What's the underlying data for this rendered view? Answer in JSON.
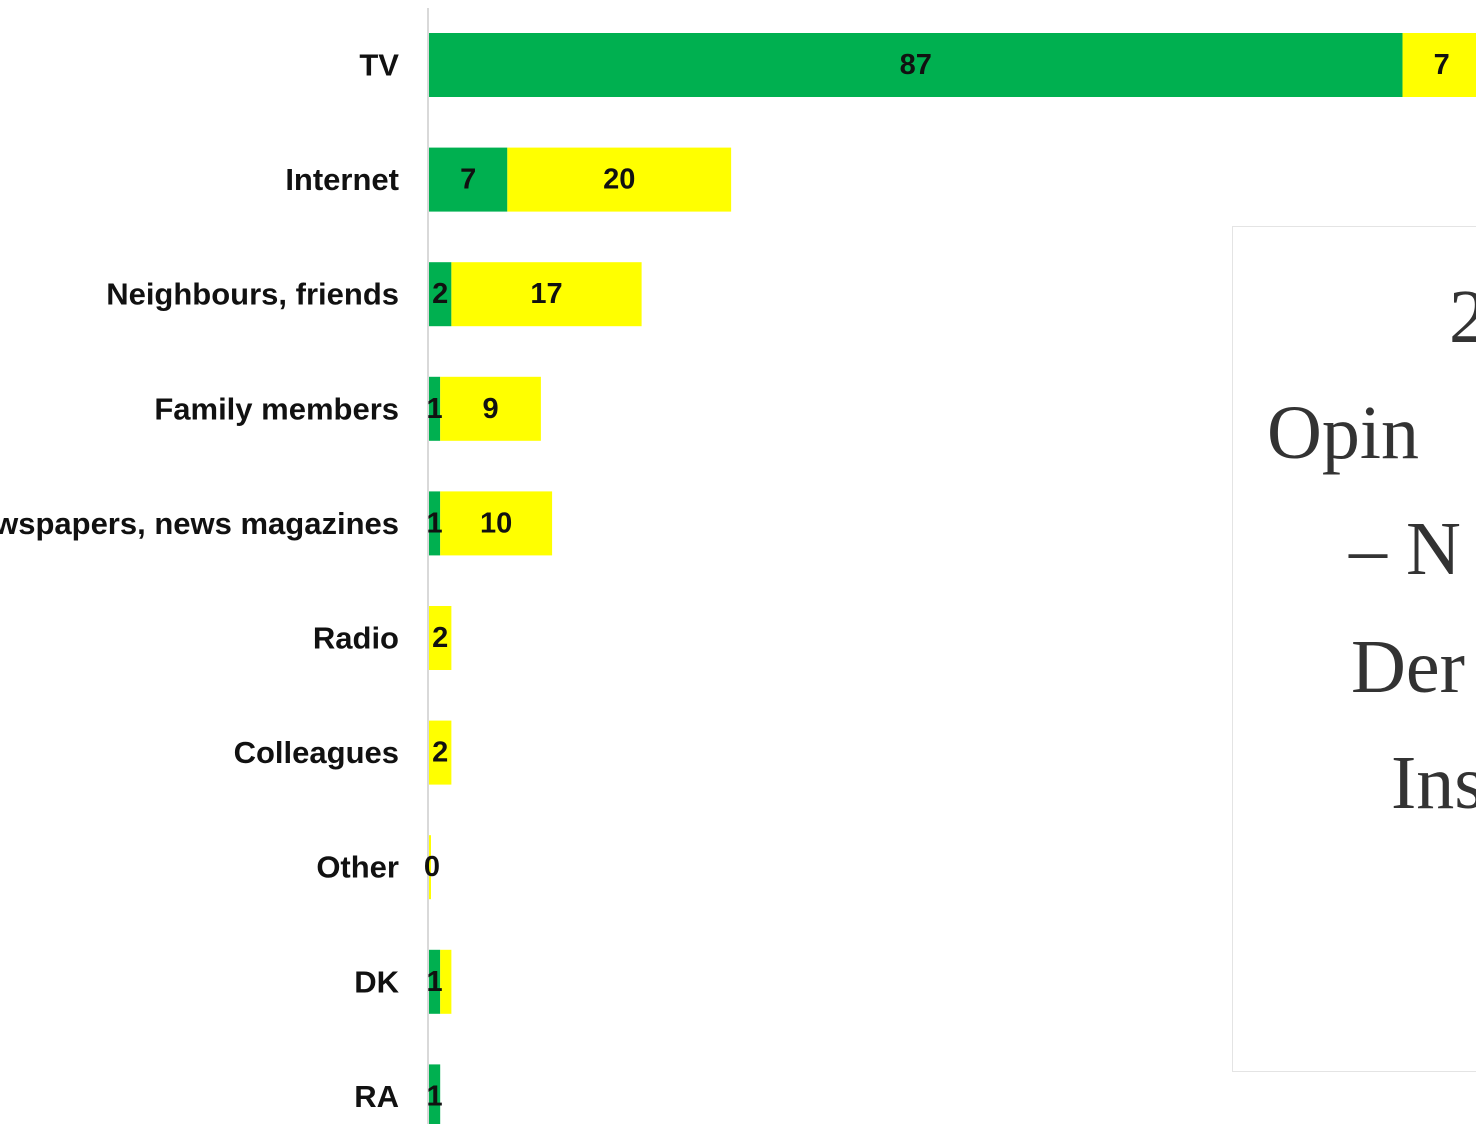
{
  "chart_data": {
    "type": "bar",
    "orientation": "horizontal",
    "stacked": true,
    "categories": [
      "TV",
      "Internet",
      "Neighbours, friends",
      "Family members",
      "Newspapers, news magazines",
      "Radio",
      "Colleagues",
      "Other",
      "DK",
      "RA"
    ],
    "series": [
      {
        "color": "#00b050",
        "values": [
          87,
          7,
          2,
          1,
          1,
          0,
          0,
          0,
          1,
          1
        ]
      },
      {
        "color": "#ffff00",
        "values": [
          7,
          20,
          17,
          9,
          10,
          2,
          2,
          0,
          1,
          0
        ]
      }
    ],
    "data_labels": [
      [
        "87",
        "7"
      ],
      [
        "7",
        "20"
      ],
      [
        "2",
        "17"
      ],
      [
        "1",
        "9"
      ],
      [
        "1",
        "10"
      ],
      [
        "",
        "2"
      ],
      [
        "",
        "2"
      ],
      [
        "",
        "0"
      ],
      [
        "1",
        ""
      ],
      [
        "1",
        ""
      ]
    ],
    "xlim": [
      0,
      94
    ],
    "grid": false,
    "legend": "none"
  },
  "overlay": {
    "lines": [
      "2",
      "Opin",
      "– N",
      "Der",
      "Ins"
    ]
  }
}
